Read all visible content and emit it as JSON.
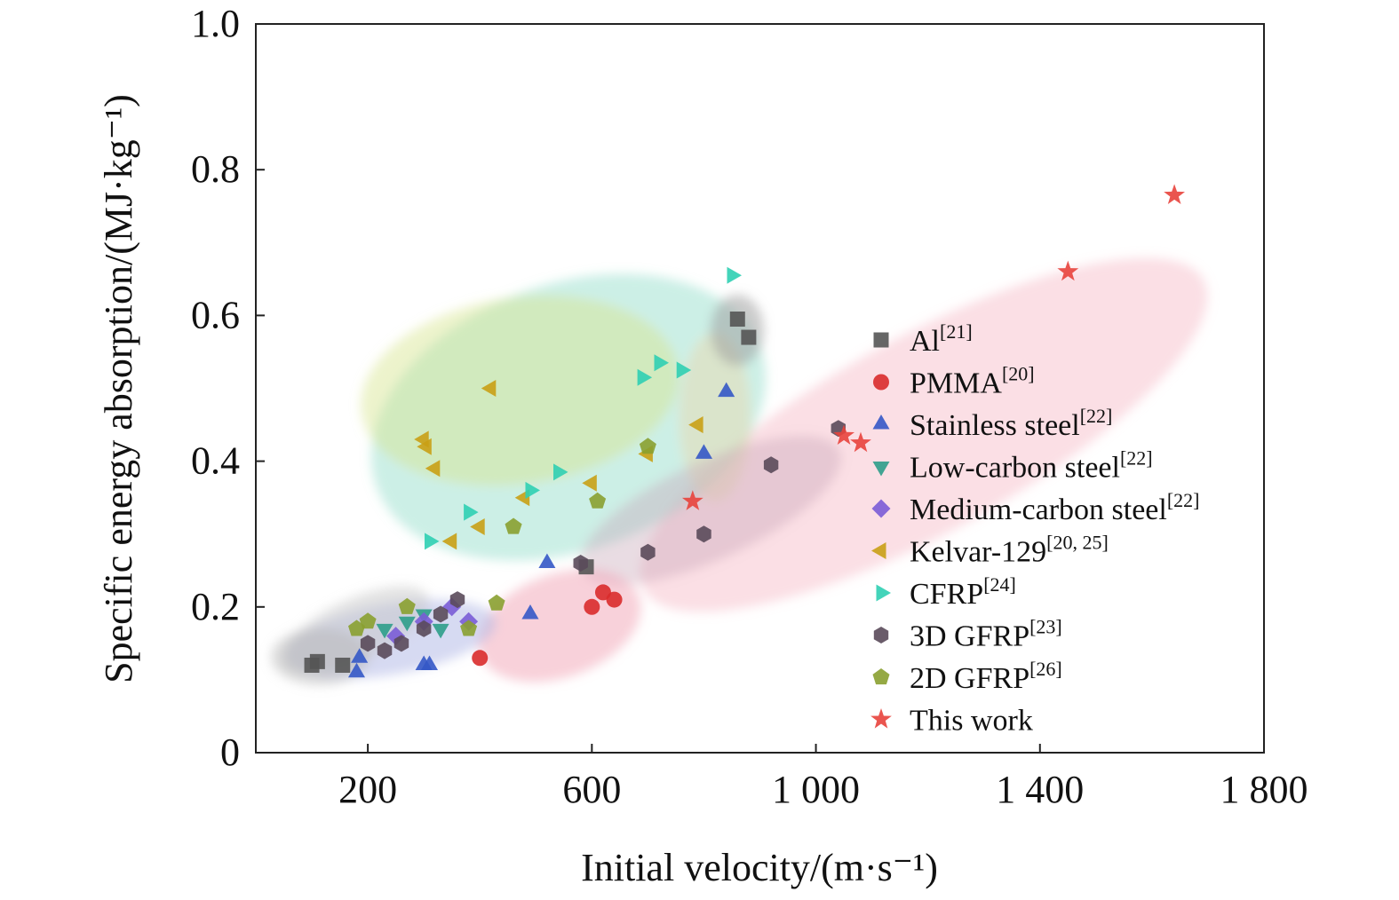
{
  "chart_data": {
    "type": "scatter",
    "xlabel": "Initial velocity/(m·s⁻¹)",
    "ylabel": "Specific energy absorption/(MJ·kg⁻¹)",
    "xlim": [
      0,
      1800
    ],
    "ylim": [
      0,
      1.0
    ],
    "x_ticks": [
      200,
      600,
      1000,
      1400,
      1800
    ],
    "x_tick_labels": [
      "200",
      "600",
      "1 000",
      "1 400",
      "1 800"
    ],
    "y_ticks": [
      0,
      0.2,
      0.4,
      0.6,
      0.8,
      1.0
    ],
    "y_tick_labels": [
      "0",
      "0.2",
      "0.4",
      "0.6",
      "0.8",
      "1.0"
    ],
    "grid": false,
    "legend_position": "right",
    "series": [
      {
        "name": "Al",
        "ref": "[21]",
        "marker": "square",
        "color": "#555555",
        "points": [
          [
            100,
            0.12
          ],
          [
            110,
            0.125
          ],
          [
            155,
            0.12
          ],
          [
            860,
            0.595
          ],
          [
            880,
            0.57
          ],
          [
            590,
            0.255
          ]
        ]
      },
      {
        "name": "PMMA",
        "ref": "[20]",
        "marker": "circle",
        "color": "#d92b2b",
        "points": [
          [
            400,
            0.13
          ],
          [
            600,
            0.2
          ],
          [
            620,
            0.22
          ],
          [
            640,
            0.21
          ]
        ]
      },
      {
        "name": "Stainless steel",
        "ref": "[22]",
        "marker": "triangle-up",
        "color": "#3458c6",
        "points": [
          [
            180,
            0.11
          ],
          [
            185,
            0.13
          ],
          [
            300,
            0.12
          ],
          [
            310,
            0.12
          ],
          [
            490,
            0.19
          ],
          [
            520,
            0.26
          ],
          [
            840,
            0.495
          ],
          [
            800,
            0.41
          ]
        ]
      },
      {
        "name": "Low-carbon steel",
        "ref": "[22]",
        "marker": "triangle-down",
        "color": "#2d9d8a",
        "points": [
          [
            230,
            0.17
          ],
          [
            270,
            0.18
          ],
          [
            300,
            0.19
          ],
          [
            330,
            0.17
          ]
        ]
      },
      {
        "name": "Medium-carbon steel",
        "ref": "[22]",
        "marker": "diamond",
        "color": "#7a5cd6",
        "points": [
          [
            250,
            0.16
          ],
          [
            300,
            0.18
          ],
          [
            350,
            0.2
          ],
          [
            380,
            0.18
          ]
        ]
      },
      {
        "name": "Kelvar-129",
        "ref": "[20, 25]",
        "marker": "triangle-left",
        "color": "#c9a015",
        "points": [
          [
            300,
            0.43
          ],
          [
            305,
            0.42
          ],
          [
            320,
            0.39
          ],
          [
            420,
            0.5
          ],
          [
            790,
            0.45
          ],
          [
            700,
            0.41
          ],
          [
            600,
            0.37
          ],
          [
            480,
            0.35
          ],
          [
            400,
            0.31
          ],
          [
            350,
            0.29
          ]
        ]
      },
      {
        "name": "CFRP",
        "ref": "[24]",
        "marker": "triangle-right",
        "color": "#2fcfb3",
        "points": [
          [
            850,
            0.655
          ],
          [
            690,
            0.515
          ],
          [
            720,
            0.535
          ],
          [
            760,
            0.525
          ],
          [
            540,
            0.385
          ],
          [
            490,
            0.36
          ],
          [
            380,
            0.33
          ],
          [
            310,
            0.29
          ]
        ]
      },
      {
        "name": "3D GFRP",
        "ref": "[23]",
        "marker": "hexagon",
        "color": "#5a4a5a",
        "points": [
          [
            1040,
            0.445
          ],
          [
            920,
            0.395
          ],
          [
            800,
            0.3
          ],
          [
            700,
            0.275
          ],
          [
            580,
            0.26
          ],
          [
            360,
            0.21
          ],
          [
            330,
            0.19
          ],
          [
            300,
            0.17
          ],
          [
            260,
            0.15
          ],
          [
            200,
            0.15
          ],
          [
            230,
            0.14
          ]
        ]
      },
      {
        "name": "2D GFRP",
        "ref": "[26]",
        "marker": "pentagon",
        "color": "#8aa030",
        "points": [
          [
            700,
            0.42
          ],
          [
            610,
            0.345
          ],
          [
            460,
            0.31
          ],
          [
            430,
            0.205
          ],
          [
            380,
            0.17
          ],
          [
            270,
            0.2
          ],
          [
            200,
            0.18
          ],
          [
            180,
            0.17
          ]
        ]
      },
      {
        "name": "This work",
        "ref": "",
        "marker": "star",
        "color": "#e8423c",
        "points": [
          [
            1640,
            0.765
          ],
          [
            1450,
            0.66
          ],
          [
            1080,
            0.425
          ],
          [
            1050,
            0.435
          ],
          [
            780,
            0.345
          ]
        ]
      }
    ]
  }
}
